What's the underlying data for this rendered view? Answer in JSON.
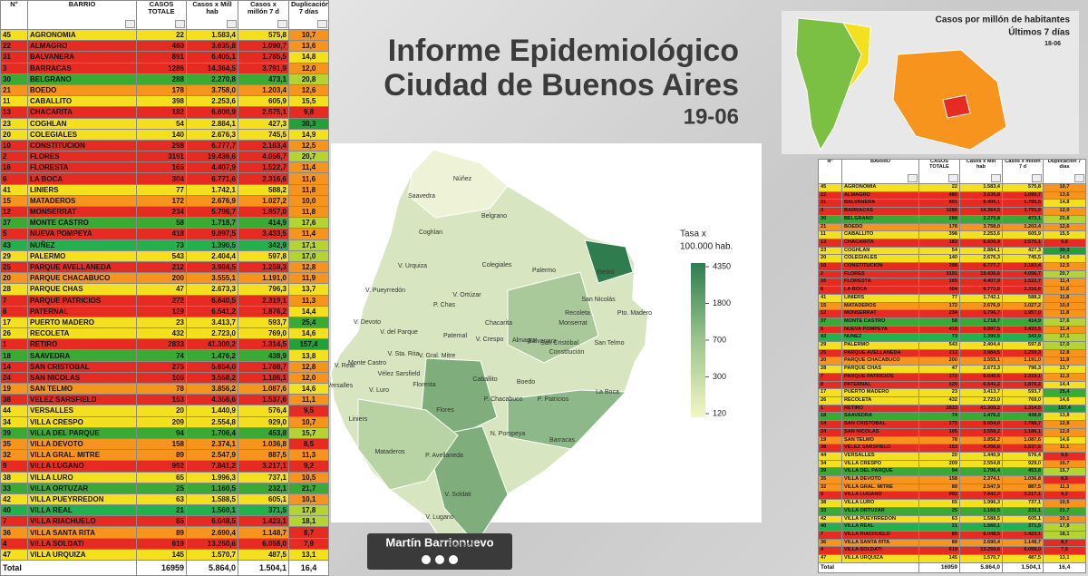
{
  "main_title": [
    "Informe Epidemiológico",
    "Ciudad de Buenos Aires"
  ],
  "date": "19-06",
  "table": {
    "header": [
      "N°",
      "BARRIO",
      "CASOS TOTALE",
      "Casos x Mill hab",
      "Casos x millón 7 d",
      "Duplicación 7 días"
    ],
    "rows": [
      [
        "45",
        "AGRONOMIA",
        "22",
        "1.583,4",
        "575,8",
        "10,7"
      ],
      [
        "22",
        "ALMAGRO",
        "480",
        "3.635,8",
        "1.090,7",
        "13,6"
      ],
      [
        "31",
        "BALVANERA",
        "891",
        "6.405,1",
        "1.785,5",
        "14,8"
      ],
      [
        "3",
        "BARRACAS",
        "1286",
        "14.364,5",
        "3.791,9",
        "12,0"
      ],
      [
        "30",
        "BELGRANO",
        "288",
        "2.270,8",
        "473,1",
        "20,8"
      ],
      [
        "21",
        "BOEDO",
        "178",
        "3.758,0",
        "1.203,4",
        "12,6"
      ],
      [
        "11",
        "CABALLITO",
        "398",
        "2.253,6",
        "605,9",
        "15,5"
      ],
      [
        "13",
        "CHACARITA",
        "182",
        "6.600,9",
        "2.575,1",
        "9,8"
      ],
      [
        "23",
        "COGHLAN",
        "54",
        "2.884,1",
        "427,3",
        "30,3"
      ],
      [
        "20",
        "COLEGIALES",
        "140",
        "2.676,3",
        "745,5",
        "14,9"
      ],
      [
        "10",
        "CONSTITUCION",
        "298",
        "6.777,7",
        "2.183,4",
        "12,5"
      ],
      [
        "2",
        "FLORES",
        "3191",
        "19.436,6",
        "4.056,7",
        "20,7"
      ],
      [
        "16",
        "FLORESTA",
        "165",
        "4.407,9",
        "1.522,7",
        "11,4"
      ],
      [
        "6",
        "LA BOCA",
        "304",
        "6.771,6",
        "2.316,6",
        "11,6"
      ],
      [
        "41",
        "LINIERS",
        "77",
        "1.742,1",
        "588,2",
        "11,8"
      ],
      [
        "15",
        "MATADEROS",
        "172",
        "2.676,9",
        "1.027,2",
        "10,0"
      ],
      [
        "12",
        "MONSERRAT",
        "234",
        "5.796,7",
        "1.957,0",
        "11,8"
      ],
      [
        "37",
        "MONTE CASTRO",
        "58",
        "1.718,7",
        "414,9",
        "17,6"
      ],
      [
        "5",
        "NUEVA POMPEYA",
        "418",
        "9.897,5",
        "3.433,5",
        "11,4"
      ],
      [
        "43",
        "NUÑEZ",
        "73",
        "1.390,5",
        "342,9",
        "17,1"
      ],
      [
        "29",
        "PALERMO",
        "543",
        "2.404,4",
        "597,8",
        "17,0"
      ],
      [
        "25",
        "PARQUE AVELLANEDA",
        "212",
        "3.984,5",
        "1.259,3",
        "12,8"
      ],
      [
        "20",
        "PARQUE CHACABUCO",
        "200",
        "3.555,1",
        "1.191,0",
        "11,9"
      ],
      [
        "28",
        "PARQUE CHAS",
        "47",
        "2.673,3",
        "796,3",
        "13,7"
      ],
      [
        "7",
        "PARQUE PATRICIOS",
        "272",
        "6.640,5",
        "2.319,1",
        "11,3"
      ],
      [
        "8",
        "PATERNAL",
        "129",
        "6.541,2",
        "1.876,2",
        "14,4"
      ],
      [
        "17",
        "PUERTO MADERO",
        "23",
        "3.413,7",
        "593,7",
        "25,4"
      ],
      [
        "26",
        "RECOLETA",
        "432",
        "2.723,0",
        "769,0",
        "14,6"
      ],
      [
        "1",
        "RETIRO",
        "2833",
        "41.300,2",
        "1.314,5",
        "157,4"
      ],
      [
        "18",
        "SAAVEDRA",
        "74",
        "1.476,2",
        "438,9",
        "13,8"
      ],
      [
        "14",
        "SAN CRISTOBAL",
        "275",
        "5.654,0",
        "1.788,7",
        "12,8"
      ],
      [
        "24",
        "SAN NICOLAS",
        "105",
        "3.558,2",
        "1.186,1",
        "12,0"
      ],
      [
        "19",
        "SAN TELMO",
        "78",
        "3.856,2",
        "1.087,6",
        "14,6"
      ],
      [
        "38",
        "VELEZ SARSFIELD",
        "153",
        "4.356,6",
        "1.537,6",
        "11,1"
      ],
      [
        "44",
        "VERSALLES",
        "20",
        "1.440,9",
        "576,4",
        "9,5"
      ],
      [
        "34",
        "VILLA CRESPO",
        "209",
        "2.554,8",
        "929,0",
        "10,7"
      ],
      [
        "39",
        "VILLA DEL PARQUE",
        "94",
        "1.706,4",
        "453,8",
        "15,7"
      ],
      [
        "35",
        "VILLA DEVOTO",
        "158",
        "2.374,1",
        "1.036,8",
        "8,5"
      ],
      [
        "32",
        "VILLA GRAL. MITRE",
        "89",
        "2.547,9",
        "887,5",
        "11,3"
      ],
      [
        "9",
        "VILLA LUGANO",
        "992",
        "7.841,2",
        "3.217,1",
        "9,2"
      ],
      [
        "38",
        "VILLA LURO",
        "65",
        "1.996,3",
        "737,1",
        "10,5"
      ],
      [
        "33",
        "VILLA ORTUZAR",
        "25",
        "1.160,5",
        "232,1",
        "21,7"
      ],
      [
        "42",
        "VILLA PUEYRREDON",
        "63",
        "1.588,5",
        "605,1",
        "10,1"
      ],
      [
        "40",
        "VILLA REAL",
        "21",
        "1.560,1",
        "371,5",
        "17,8"
      ],
      [
        "7",
        "VILLA RIACHUELO",
        "85",
        "6.048,5",
        "1.423,1",
        "18,1"
      ],
      [
        "36",
        "VILLA SANTA RITA",
        "89",
        "2.690,4",
        "1.148,7",
        "8,7"
      ],
      [
        "4",
        "VILLA SOLDATI",
        "619",
        "13.250,6",
        "6.058,0",
        "7,9"
      ],
      [
        "47",
        "VILLA URQUIZA",
        "145",
        "1.570,7",
        "487,5",
        "13,1"
      ]
    ],
    "row_fills": [
      "#f4e01e",
      "#e52b22",
      "#e52b22",
      "#e52b22",
      "#3aaa35",
      "#f7941d",
      "#f4e01e",
      "#e52b22",
      "#f4e01e",
      "#f4e01e",
      "#e52b22",
      "#e52b22",
      "#e52b22",
      "#e52b22",
      "#f4e01e",
      "#f7941d",
      "#e52b22",
      "#3aaa35",
      "#e52b22",
      "#22b14c",
      "#f4e01e",
      "#e52b22",
      "#f7941d",
      "#f4e01e",
      "#e52b22",
      "#e52b22",
      "#f4e01e",
      "#f4e01e",
      "#e52b22",
      "#3aaa35",
      "#e52b22",
      "#e52b22",
      "#f7941d",
      "#e52b22",
      "#f4e01e",
      "#f4e01e",
      "#3aaa35",
      "#f7941d",
      "#f7941d",
      "#e52b22",
      "#f4e01e",
      "#3aaa35",
      "#f4e01e",
      "#22b14c",
      "#e52b22",
      "#f7941d",
      "#e52b22",
      "#f4e01e"
    ],
    "dup_fills": [
      "#f7941d",
      "#f7941d",
      "#f4e01e",
      "#f7941d",
      "#b5d334",
      "#f7941d",
      "#f4e01e",
      "#e52b22",
      "#22a03a",
      "#f4e01e",
      "#f7941d",
      "#b5d334",
      "#f7941d",
      "#f7941d",
      "#f7941d",
      "#f7941d",
      "#f7941d",
      "#b5d334",
      "#f7941d",
      "#b5d334",
      "#b5d334",
      "#f7941d",
      "#f7941d",
      "#f4e01e",
      "#f7941d",
      "#f4e01e",
      "#3aaa35",
      "#f4e01e",
      "#22a03a",
      "#f4e01e",
      "#f7941d",
      "#f7941d",
      "#f4e01e",
      "#f7941d",
      "#e52b22",
      "#f7941d",
      "#b5d334",
      "#e52b22",
      "#f7941d",
      "#e52b22",
      "#f7941d",
      "#3aaa35",
      "#f7941d",
      "#b5d334",
      "#b5d334",
      "#e52b22",
      "#e52b22",
      "#f4e01e"
    ],
    "total": [
      "Total",
      "16959",
      "5.864,0",
      "1.504,1",
      "16,4"
    ]
  },
  "map": {
    "labels": [
      "Núñez",
      "Saavedra",
      "Belgrano",
      "Coghlan",
      "V. Urquiza",
      "Palermo",
      "Colegiales",
      "V. Pueyrredón",
      "V. Ortúzar",
      "P. Chas",
      "Chacarita",
      "Recoleta",
      "Retiro",
      "Paternal",
      "V. Crespo",
      "V. Devoto",
      "V. del Parque",
      "V. Gral. Mitre",
      "V. Sta. Rita",
      "Monte Castro",
      "V. Real",
      "Versalles",
      "V. Luro",
      "Floresta",
      "Vélez Sarsfield",
      "Caballito",
      "Almagro",
      "Balvanera",
      "San Nicolás",
      "Monserrat",
      "Pto. Madero",
      "San Cristóbal",
      "Constitución",
      "San Telmo",
      "Boedo",
      "Flores",
      "P. Chacabuco",
      "P. Patricios",
      "La Boca",
      "Barracas",
      "N. Pompeya",
      "Liniers",
      "Mataderos",
      "P. Avellaneda",
      "V. Soldati",
      "V. Lugano",
      "V. Riachuelo"
    ],
    "legend_title": [
      "Tasa x",
      "100.000 hab."
    ],
    "legend_ticks": [
      "4350",
      "1800",
      "700",
      "300",
      "120"
    ]
  },
  "inset": {
    "title": "Casos por millón de habitantes",
    "subtitle": "Últimos 7 días",
    "date": "18-06"
  },
  "author": "Martín Barrionuevo"
}
